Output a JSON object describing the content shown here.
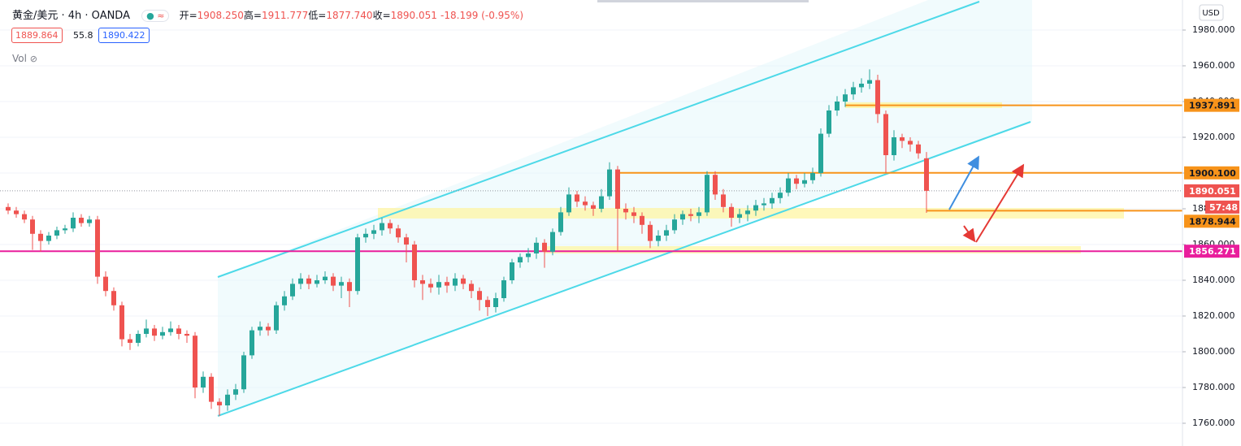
{
  "header": {
    "symbol": "黄金/美元 · 4h · OANDA",
    "status_icon": "≈",
    "ohlc": [
      {
        "key": "开=",
        "value": "1908.250"
      },
      {
        "key": "高=",
        "value": "1911.777"
      },
      {
        "key": "低=",
        "value": "1877.740"
      },
      {
        "key": "收=",
        "value": "1890.051"
      }
    ],
    "change": "-18.199 (-0.95%)",
    "bid": "1889.864",
    "spread": "55.8",
    "ask": "1890.422",
    "volume_label": "Vol",
    "currency": "USD"
  },
  "chart_data": {
    "type": "candlestick",
    "up_color": "#26a69a",
    "down_color": "#ef5350",
    "grid": true,
    "ylim": [
      1747.27,
      1996.82
    ],
    "yticks": [
      {
        "value": 1760,
        "label": "1760.000"
      },
      {
        "value": 1780,
        "label": "1780.000"
      },
      {
        "value": 1800,
        "label": "1800.000"
      },
      {
        "value": 1820,
        "label": "1820.000"
      },
      {
        "value": 1840,
        "label": "1840.000"
      },
      {
        "value": 1860,
        "label": "1860.000"
      },
      {
        "value": 1880,
        "label": "1880.000"
      },
      {
        "value": 1900,
        "label": "1900.000"
      },
      {
        "value": 1920,
        "label": "1920.000"
      },
      {
        "value": 1940,
        "label": "1940.000"
      },
      {
        "value": 1960,
        "label": "1960.000"
      },
      {
        "value": 1980,
        "label": "1980.000"
      }
    ],
    "open": [
      1881,
      1879,
      1877,
      1874,
      1866,
      1862,
      1865,
      1868,
      1869,
      1875,
      1872,
      1874,
      1842,
      1834,
      1826,
      1807,
      1805,
      1810,
      1813,
      1809,
      1811,
      1813,
      1810,
      1809,
      1780,
      1786,
      1772,
      1770,
      1776,
      1779,
      1798,
      1812,
      1814,
      1812,
      1826,
      1831,
      1838,
      1841,
      1838,
      1840,
      1842,
      1837,
      1839,
      1834,
      1864,
      1866,
      1868,
      1872,
      1869,
      1864,
      1860,
      1840,
      1838,
      1836,
      1839,
      1837,
      1841,
      1838,
      1834,
      1829,
      1825,
      1830,
      1840,
      1850,
      1853,
      1855,
      1861,
      1856,
      1867,
      1878,
      1888,
      1884,
      1882,
      1880,
      1887,
      1902,
      1880,
      1878,
      1876,
      1871,
      1862,
      1865,
      1868,
      1874,
      1877,
      1876,
      1878,
      1899,
      1888,
      1881,
      1875,
      1877,
      1879,
      1882,
      1883,
      1886,
      1889,
      1897,
      1894,
      1896,
      1900,
      1922,
      1935,
      1940,
      1944,
      1948,
      1950,
      1952,
      1933,
      1910,
      1920,
      1918,
      1916,
      1908.25
    ],
    "high": [
      1883,
      1881,
      1879,
      1876,
      1868,
      1867,
      1870,
      1871,
      1878,
      1877,
      1876,
      1876,
      1845,
      1836,
      1828,
      1810,
      1812,
      1818,
      1815,
      1814,
      1817,
      1815,
      1812,
      1811,
      1789,
      1788,
      1774,
      1779,
      1782,
      1800,
      1814,
      1817,
      1816,
      1828,
      1834,
      1841,
      1844,
      1843,
      1843,
      1845,
      1844,
      1842,
      1841,
      1866,
      1869,
      1871,
      1875,
      1874,
      1871,
      1866,
      1862,
      1843,
      1841,
      1843,
      1842,
      1844,
      1843,
      1840,
      1836,
      1831,
      1833,
      1842,
      1852,
      1855,
      1858,
      1864,
      1863,
      1869,
      1881,
      1892,
      1890,
      1887,
      1884,
      1891,
      1906,
      1904,
      1883,
      1881,
      1878,
      1873,
      1868,
      1871,
      1877,
      1879,
      1880,
      1881,
      1901,
      1901,
      1891,
      1883,
      1880,
      1882,
      1885,
      1886,
      1889,
      1892,
      1900,
      1899,
      1900,
      1903,
      1925,
      1938,
      1943,
      1947,
      1951,
      1953,
      1958,
      1955,
      1935,
      1924,
      1922,
      1920,
      1918,
      1911.777
    ],
    "low": [
      1877,
      1875,
      1872,
      1857,
      1856,
      1860,
      1863,
      1866,
      1867,
      1870,
      1870,
      1838,
      1831,
      1823,
      1803,
      1801,
      1803,
      1808,
      1806,
      1807,
      1809,
      1807,
      1805,
      1774,
      1777,
      1768,
      1764,
      1767,
      1773,
      1777,
      1796,
      1809,
      1809,
      1810,
      1823,
      1829,
      1835,
      1835,
      1836,
      1838,
      1834,
      1830,
      1825,
      1832,
      1861,
      1863,
      1865,
      1866,
      1861,
      1850,
      1836,
      1829,
      1833,
      1832,
      1833,
      1834,
      1835,
      1830,
      1823,
      1820,
      1822,
      1828,
      1838,
      1847,
      1850,
      1852,
      1847,
      1854,
      1865,
      1876,
      1881,
      1879,
      1876,
      1878,
      1885,
      1856,
      1874,
      1872,
      1866,
      1858,
      1859,
      1862,
      1866,
      1871,
      1873,
      1872,
      1876,
      1885,
      1878,
      1870,
      1872,
      1873,
      1876,
      1879,
      1880,
      1883,
      1887,
      1891,
      1892,
      1894,
      1898,
      1920,
      1932,
      1937,
      1941,
      1945,
      1947,
      1928,
      1900,
      1907,
      1914,
      1912,
      1908,
      1877.74
    ],
    "close": [
      1879,
      1877,
      1874,
      1866,
      1862,
      1865,
      1868,
      1869,
      1875,
      1872,
      1874,
      1842,
      1834,
      1826,
      1807,
      1805,
      1810,
      1813,
      1809,
      1811,
      1813,
      1810,
      1809,
      1780,
      1786,
      1772,
      1770,
      1776,
      1779,
      1798,
      1812,
      1814,
      1812,
      1826,
      1831,
      1838,
      1841,
      1838,
      1840,
      1842,
      1837,
      1839,
      1834,
      1864,
      1866,
      1868,
      1872,
      1869,
      1864,
      1860,
      1840,
      1838,
      1836,
      1839,
      1837,
      1841,
      1838,
      1834,
      1829,
      1825,
      1830,
      1840,
      1850,
      1853,
      1855,
      1861,
      1856,
      1867,
      1878,
      1888,
      1884,
      1882,
      1880,
      1887,
      1902,
      1880,
      1878,
      1876,
      1871,
      1862,
      1865,
      1868,
      1874,
      1877,
      1876,
      1878,
      1899,
      1888,
      1881,
      1875,
      1877,
      1879,
      1882,
      1883,
      1886,
      1889,
      1897,
      1894,
      1896,
      1900,
      1922,
      1935,
      1940,
      1944,
      1948,
      1950,
      1952,
      1933,
      1910,
      1920,
      1918,
      1916,
      1911,
      1890.051
    ],
    "levels": [
      {
        "value": 1937.891,
        "label": "1937.891",
        "color": "#f7931a",
        "text_color": "#131722"
      },
      {
        "value": 1900.1,
        "label": "1900.100",
        "color": "#f7931a",
        "text_color": "#131722"
      },
      {
        "value": 1878.944,
        "label": "1878.944",
        "color": "#f7931a",
        "text_color": "#131722"
      },
      {
        "value": 1856.271,
        "label": "1856.271",
        "color": "#e91e9c",
        "text_color": "#ffffff"
      }
    ],
    "last_price": {
      "value": 1890.051,
      "label": "1890.051",
      "color": "#ef5350"
    },
    "countdown": "57:48"
  }
}
